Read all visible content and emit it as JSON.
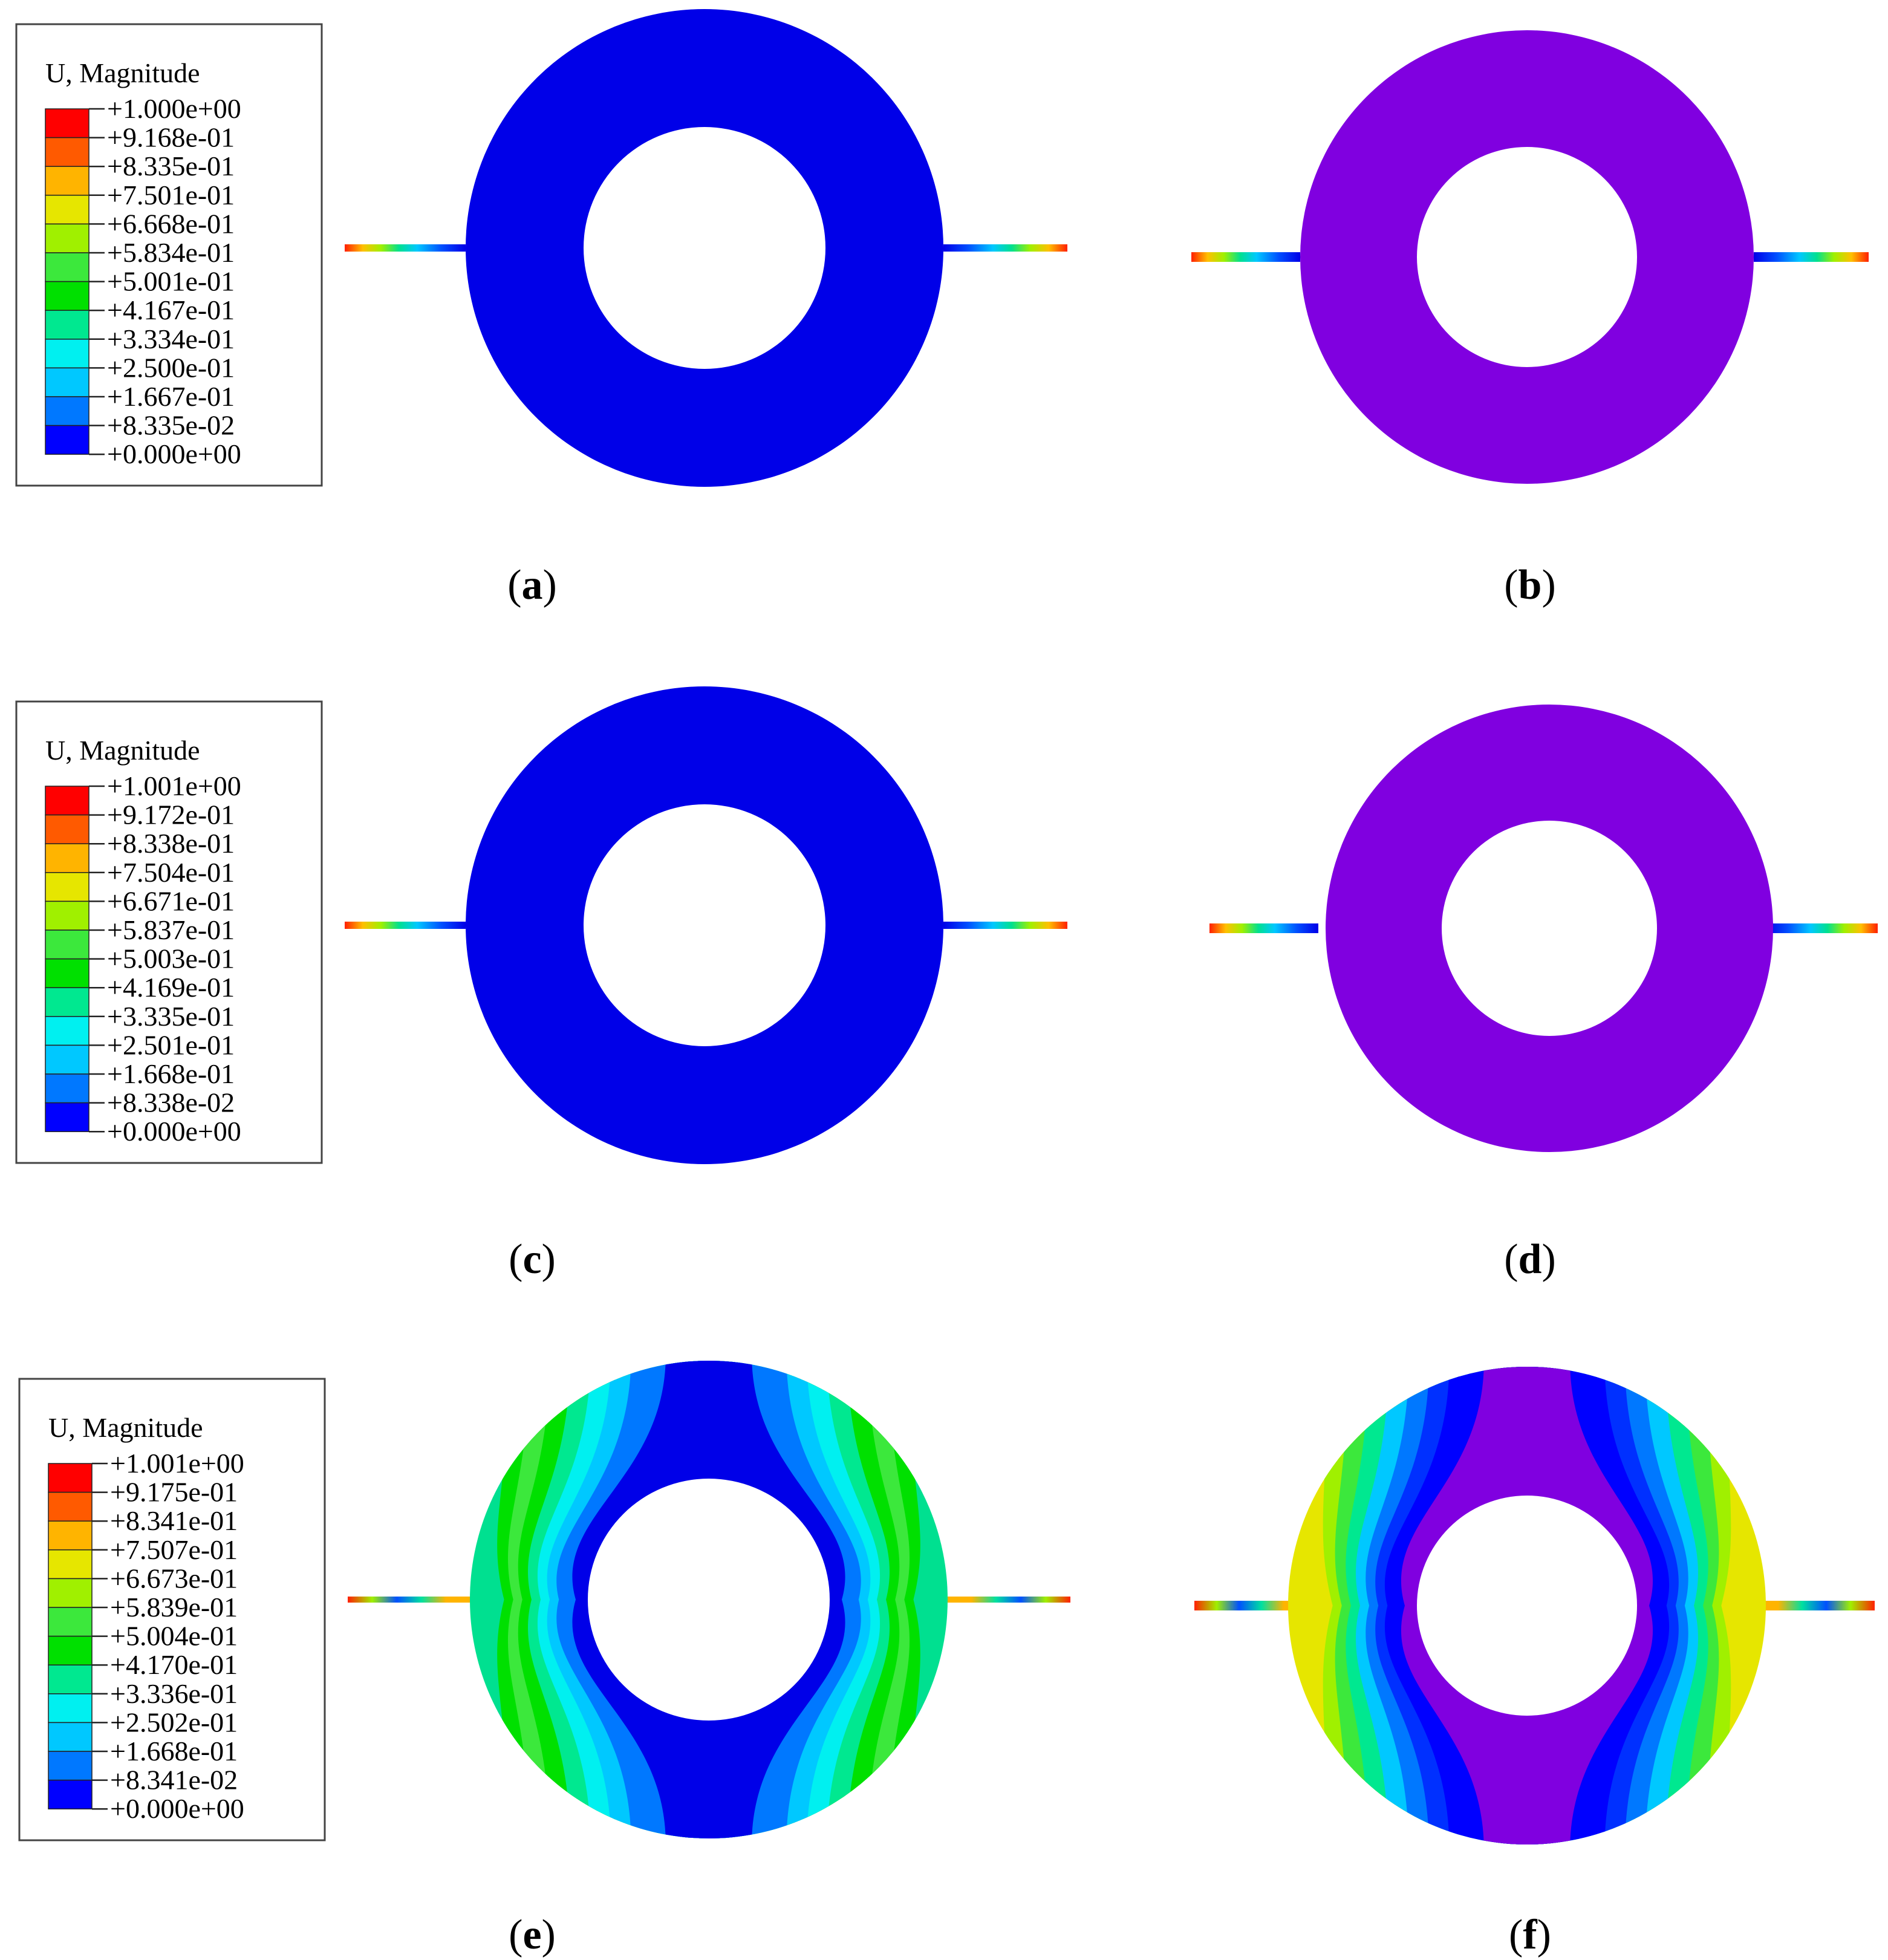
{
  "legend_palette": [
    "#ff0000",
    "#ff5a00",
    "#ffb400",
    "#e6e600",
    "#a0f000",
    "#3ce83c",
    "#00e000",
    "#00e890",
    "#00f0f0",
    "#00c8ff",
    "#0078ff",
    "#0000ff"
  ],
  "body_colors": {
    "blue": "#0000e8",
    "violet": "#8000e0"
  },
  "legends": [
    {
      "title": "U, Magnitude",
      "ticks": [
        "+1.000e+00",
        "+9.168e-01",
        "+8.335e-01",
        "+7.501e-01",
        "+6.668e-01",
        "+5.834e-01",
        "+5.001e-01",
        "+4.167e-01",
        "+3.334e-01",
        "+2.500e-01",
        "+1.667e-01",
        "+8.335e-02",
        "+0.000e+00"
      ]
    },
    {
      "title": "U, Magnitude",
      "ticks": [
        "+1.001e+00",
        "+9.172e-01",
        "+8.338e-01",
        "+7.504e-01",
        "+6.671e-01",
        "+5.837e-01",
        "+5.003e-01",
        "+4.169e-01",
        "+3.335e-01",
        "+2.501e-01",
        "+1.668e-01",
        "+8.338e-02",
        "+0.000e+00"
      ]
    },
    {
      "title": "U, Magnitude",
      "ticks": [
        "+1.001e+00",
        "+9.175e-01",
        "+8.341e-01",
        "+7.507e-01",
        "+6.673e-01",
        "+5.839e-01",
        "+5.004e-01",
        "+4.170e-01",
        "+3.336e-01",
        "+2.502e-01",
        "+1.668e-01",
        "+8.341e-02",
        "+0.000e+00"
      ]
    }
  ],
  "panels": [
    {
      "letter": "a",
      "body": "blue",
      "field": "uniform"
    },
    {
      "letter": "b",
      "body": "violet",
      "field": "uniform"
    },
    {
      "letter": "c",
      "body": "blue",
      "field": "uniform"
    },
    {
      "letter": "d",
      "body": "violet",
      "field": "uniform"
    },
    {
      "letter": "e",
      "body": "blue",
      "field": "contour"
    },
    {
      "letter": "f",
      "body": "violet",
      "field": "contour"
    }
  ]
}
